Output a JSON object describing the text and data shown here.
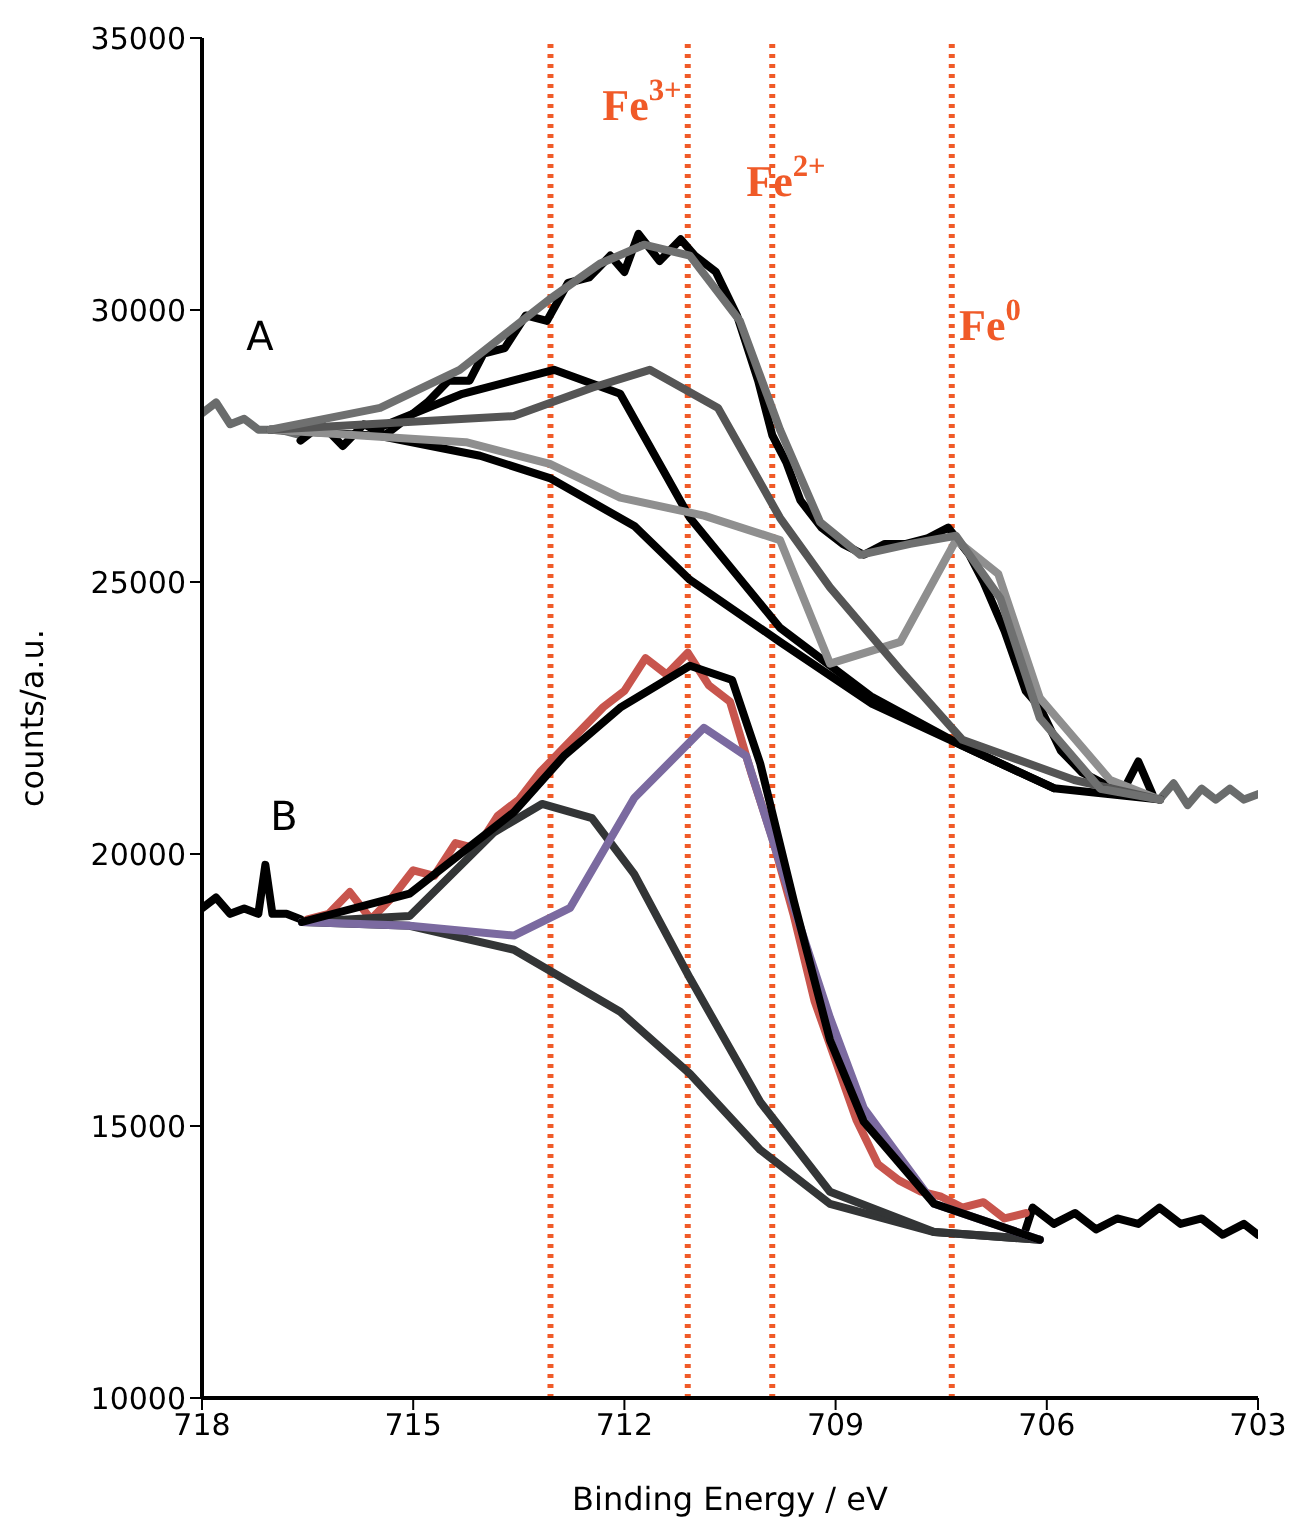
{
  "chart_data": {
    "type": "line",
    "xlabel": "Binding Energy / eV",
    "ylabel": "counts/a.u.",
    "xlim": [
      718,
      703
    ],
    "xticks": [
      718,
      715,
      712,
      709,
      706,
      703
    ],
    "ylim": [
      10000,
      35000
    ],
    "yticks": [
      10000,
      15000,
      20000,
      25000,
      30000,
      35000
    ],
    "marker": "none",
    "line_style": "solid",
    "series": [
      {
        "color": "#6a6c6c",
        "x": [
          718,
          717.8,
          717.6,
          717.4,
          717.2,
          716.9,
          716.6
        ],
        "values": [
          28100,
          28300,
          27900,
          28000,
          27800,
          27800,
          27700
        ]
      },
      {
        "color": "#6a6c6c",
        "x": [
          704.4,
          704.2,
          704.0,
          703.8,
          703.6,
          703.4,
          703.2,
          703.0
        ],
        "values": [
          21000,
          21300,
          20900,
          21200,
          21000,
          21200,
          21000,
          21100
        ]
      },
      {
        "color": "#000000",
        "x": [
          716.6,
          716.3,
          716.0,
          715.7,
          715.4,
          715.1,
          714.8,
          714.5,
          714.2,
          714.0,
          713.7,
          713.4,
          713.1,
          712.8,
          712.5,
          712.2,
          712.0,
          711.8,
          711.5,
          711.2,
          711.0,
          710.7,
          710.4,
          710.1,
          709.9,
          709.7,
          709.5,
          709.2,
          708.9,
          708.6,
          708.3,
          708.0,
          707.7,
          707.4,
          707.1,
          706.9,
          706.6,
          706.3,
          706.1,
          705.8,
          705.5,
          705.2,
          704.9,
          704.7,
          704.5
        ],
        "values": [
          27600,
          27900,
          27500,
          27900,
          27700,
          28000,
          28300,
          28700,
          28700,
          29200,
          29300,
          29900,
          29800,
          30500,
          30600,
          31000,
          30700,
          31400,
          30900,
          31300,
          31000,
          30700,
          29900,
          28700,
          27700,
          27200,
          26500,
          26000,
          25700,
          25500,
          25700,
          25700,
          25800,
          26000,
          25500,
          25000,
          24100,
          23000,
          22700,
          21900,
          21500,
          21300,
          21200,
          21700,
          21100
        ]
      },
      {
        "color": "#000000",
        "x": [
          717.03,
          715.5,
          714.05,
          713.06,
          711.86,
          711.07,
          709.79,
          708.48,
          707.2,
          705.9,
          704.39
        ],
        "values": [
          27800,
          27690,
          27320,
          26910,
          26030,
          25040,
          23900,
          22760,
          21990,
          21210,
          21000
        ]
      },
      {
        "color": "#000000",
        "x": [
          715.5,
          714.3,
          713.0,
          712.06,
          711.07,
          709.79,
          708.5,
          707.2,
          705.9
        ],
        "values": [
          27830,
          28460,
          28900,
          28460,
          26180,
          24160,
          22900,
          21990,
          21210
        ]
      },
      {
        "color": "#8f8f8f",
        "x": [
          717.03,
          714.25,
          713.06,
          712.06,
          710.87,
          709.79,
          709.08,
          708.08,
          707.29,
          706.69,
          706.1,
          705.1,
          704.39
        ],
        "values": [
          27800,
          27570,
          27170,
          26550,
          26220,
          25770,
          23500,
          23900,
          25770,
          25150,
          22870,
          21360,
          21000
        ]
      },
      {
        "color": "#555555",
        "x": [
          717.03,
          713.57,
          712.46,
          711.64,
          710.67,
          709.79,
          709.08,
          708.08,
          707.2,
          705.61,
          704.39
        ],
        "values": [
          27800,
          28050,
          28570,
          28900,
          28200,
          26180,
          24900,
          23380,
          22100,
          21360,
          21000
        ]
      },
      {
        "color": "#6f7070",
        "x": [
          717.03,
          715.47,
          714.34,
          713.06,
          712.35,
          711.72,
          711.07,
          710.36,
          709.79,
          709.22,
          708.65,
          707.94,
          707.29,
          706.66,
          706.1,
          705.24,
          704.39
        ],
        "values": [
          27800,
          28200,
          28900,
          30200,
          30850,
          31200,
          31000,
          29800,
          27800,
          26100,
          25500,
          25700,
          25850,
          24700,
          22500,
          21200,
          21000
        ]
      },
      {
        "color": "#000000",
        "x": [
          718,
          717.8,
          717.6,
          717.4,
          717.2,
          717.1,
          717.0,
          716.8,
          716.6
        ],
        "values": [
          19000,
          19200,
          18900,
          19000,
          18900,
          19800,
          18900,
          18900,
          18800
        ]
      },
      {
        "color": "#000000",
        "x": [
          706.3,
          706.2,
          705.9,
          705.6,
          705.3,
          705.0,
          704.7,
          704.4,
          704.1,
          703.8,
          703.5,
          703.2,
          703.0
        ],
        "values": [
          13100,
          13500,
          13200,
          13400,
          13100,
          13300,
          13200,
          13500,
          13200,
          13300,
          13000,
          13200,
          13000
        ]
      },
      {
        "color": "#c8554d",
        "x": [
          716.5,
          716.2,
          715.9,
          715.6,
          715.3,
          715.0,
          714.7,
          714.4,
          714.1,
          713.8,
          713.5,
          713.2,
          712.9,
          712.6,
          712.3,
          712.0,
          711.7,
          711.4,
          711.1,
          710.8,
          710.5,
          710.2,
          709.9,
          709.6,
          709.3,
          709.0,
          708.7,
          708.4,
          708.1,
          707.8,
          707.5,
          707.2,
          706.9,
          706.6,
          706.3
        ],
        "values": [
          18800,
          18900,
          19300,
          18800,
          19200,
          19700,
          19600,
          20200,
          20100,
          20700,
          21000,
          21500,
          21900,
          22300,
          22700,
          23000,
          23600,
          23300,
          23700,
          23100,
          22800,
          21500,
          20300,
          18900,
          17300,
          16200,
          15100,
          14300,
          14000,
          13800,
          13700,
          13500,
          13600,
          13300,
          13400
        ]
      },
      {
        "color": "#333536",
        "x": [
          716.58,
          715.05,
          713.57,
          712.06,
          711.07,
          710.07,
          709.08,
          707.6,
          706.1
        ],
        "values": [
          18750,
          18680,
          18240,
          17100,
          15960,
          14560,
          13570,
          13050,
          12910
        ]
      },
      {
        "color": "#333536",
        "x": [
          716.58,
          715.05,
          713.85,
          713.17,
          712.46,
          711.86,
          711.07,
          710.07,
          709.08,
          707.6,
          706.1
        ],
        "values": [
          18750,
          18860,
          20400,
          20920,
          20660,
          19630,
          17720,
          15440,
          13790,
          13050,
          12910
        ]
      },
      {
        "color": "#7b6aa0",
        "x": [
          716.58,
          715.05,
          713.57,
          712.77,
          711.86,
          710.87,
          710.27,
          709.59,
          709.08,
          708.6,
          707.6,
          706.1
        ],
        "values": [
          18750,
          18680,
          18500,
          19010,
          21030,
          22320,
          21800,
          19010,
          16990,
          15330,
          13570,
          12910
        ]
      },
      {
        "color": "#000000",
        "x": [
          716.58,
          715.05,
          713.57,
          712.86,
          712.06,
          711.07,
          710.47,
          710.07,
          709.59,
          709.08,
          708.6,
          707.6,
          706.1
        ],
        "values": [
          18750,
          19270,
          20770,
          21800,
          22690,
          23460,
          23200,
          21660,
          19120,
          16580,
          15080,
          13570,
          12910
        ]
      }
    ],
    "ref_lines": [
      {
        "axis": "x",
        "value": 713.05,
        "color": "#f05a28",
        "line_style": "dotted"
      },
      {
        "axis": "x",
        "value": 711.1,
        "color": "#f05a28",
        "line_style": "dotted"
      },
      {
        "axis": "x",
        "value": 709.9,
        "color": "#f05a28",
        "line_style": "dotted"
      },
      {
        "axis": "x",
        "value": 707.35,
        "color": "#f05a28",
        "line_style": "dotted"
      }
    ],
    "annotations": [
      "A",
      "B",
      "Fe$^{3+}$",
      "Fe$^{2+}$",
      "Fe$^{0}$"
    ]
  }
}
